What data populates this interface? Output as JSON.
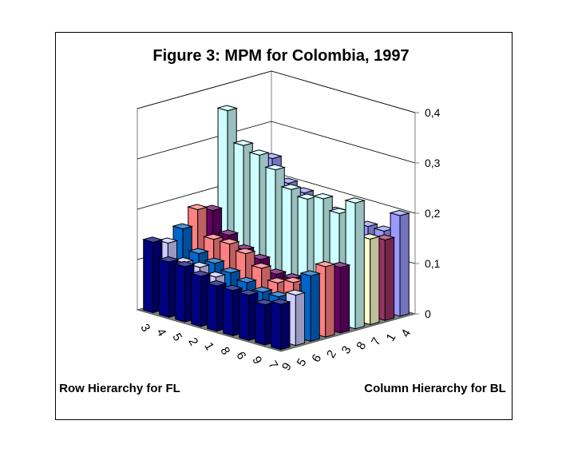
{
  "chart_data": {
    "type": "bar3d",
    "title": "Figure 3: MPM for Colombia, 1997",
    "xlabel": "Row Hierarchy for FL",
    "ylabel": "Column Hierarchy for BL",
    "categories": [
      "3",
      "4",
      "5",
      "2",
      "1",
      "8",
      "6",
      "9",
      "7"
    ],
    "zlim": [
      0,
      0.4
    ],
    "zticks": [
      "0",
      "0,1",
      "0,2",
      "0,3",
      "0,4"
    ],
    "series": [
      {
        "name": "9",
        "color": "#000080",
        "values": [
          0.14,
          0.11,
          0.11,
          0.1,
          0.09,
          0.09,
          0.09,
          0.08,
          0.09
        ]
      },
      {
        "name": "5",
        "color": "#ccccff",
        "values": [
          0.13,
          0.1,
          0.1,
          0.09,
          0.07,
          0.06,
          0.06,
          0.06,
          0.1
        ]
      },
      {
        "name": "6",
        "color": "#0066cc",
        "values": [
          0.15,
          0.11,
          0.1,
          0.09,
          0.08,
          0.07,
          0.07,
          0.06,
          0.13
        ]
      },
      {
        "name": "2",
        "color": "#ff8080",
        "values": [
          0.18,
          0.13,
          0.13,
          0.12,
          0.1,
          0.08,
          0.09,
          0.09,
          0.14
        ]
      },
      {
        "name": "3",
        "color": "#660066",
        "values": [
          0.17,
          0.13,
          0.11,
          0.1,
          0.08,
          0.08,
          0.09,
          0.08,
          0.13
        ]
      },
      {
        "name": "8",
        "color": "#ccffff",
        "values": [
          0.36,
          0.3,
          0.29,
          0.27,
          0.24,
          0.23,
          0.24,
          0.22,
          0.25
        ]
      },
      {
        "name": "7",
        "color": "#ffffcc",
        "values": [
          0.06,
          0.05,
          0.05,
          0.05,
          0.05,
          0.05,
          0.05,
          0.05,
          0.17
        ]
      },
      {
        "name": "1",
        "color": "#993366",
        "values": [
          0.08,
          0.07,
          0.07,
          0.07,
          0.07,
          0.06,
          0.06,
          0.06,
          0.16
        ]
      },
      {
        "name": "4",
        "color": "#9999ff",
        "values": [
          0.24,
          0.2,
          0.19,
          0.18,
          0.17,
          0.16,
          0.16,
          0.16,
          0.2
        ]
      }
    ]
  }
}
